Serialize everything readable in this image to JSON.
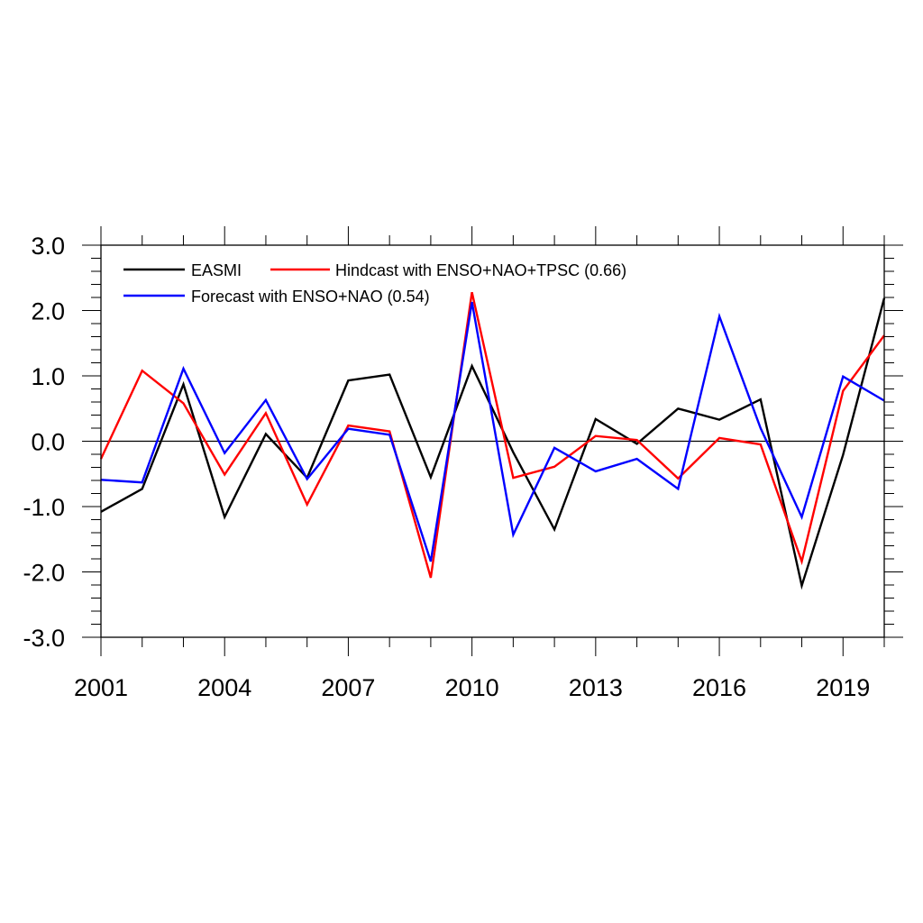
{
  "chart_data": {
    "type": "line",
    "title": "",
    "xlabel": "",
    "ylabel": "",
    "x": [
      2001,
      2002,
      2003,
      2004,
      2005,
      2006,
      2007,
      2008,
      2009,
      2010,
      2011,
      2012,
      2013,
      2014,
      2015,
      2016,
      2017,
      2018,
      2019,
      2020
    ],
    "xlim": [
      2001,
      2020
    ],
    "ylim": [
      -3.0,
      3.0
    ],
    "xticks": [
      2001,
      2004,
      2007,
      2010,
      2013,
      2016,
      2019
    ],
    "xtick_labels": [
      "2001",
      "2004",
      "2007",
      "2010",
      "2013",
      "2016",
      "2019"
    ],
    "yticks": [
      -3.0,
      -2.0,
      -1.0,
      0.0,
      1.0,
      2.0,
      3.0
    ],
    "ytick_labels": [
      "-3.0",
      "-2.0",
      "-1.0",
      "0.0",
      "1.0",
      "2.0",
      "3.0"
    ],
    "zero_line": true,
    "grid": false,
    "legend_position": "top-left",
    "series": [
      {
        "name": "EASMI",
        "color": "#000000",
        "values": [
          -1.08,
          -0.73,
          0.87,
          -1.16,
          0.11,
          -0.56,
          0.93,
          1.02,
          -0.55,
          1.15,
          -0.17,
          -1.35,
          0.34,
          -0.04,
          0.5,
          0.33,
          0.64,
          -2.21,
          -0.21,
          2.19
        ]
      },
      {
        "name": "Hindcast with ENSO+NAO+TPSC (0.66)",
        "color": "#ff0000",
        "values": [
          -0.27,
          1.08,
          0.58,
          -0.51,
          0.43,
          -0.97,
          0.24,
          0.15,
          -2.09,
          2.28,
          -0.56,
          -0.39,
          0.08,
          0.02,
          -0.57,
          0.05,
          -0.05,
          -1.84,
          0.77,
          1.62
        ]
      },
      {
        "name": "Forecast with ENSO+NAO (0.54)",
        "color": "#0000ff",
        "values": [
          -0.59,
          -0.63,
          1.11,
          -0.18,
          0.63,
          -0.58,
          0.19,
          0.1,
          -1.84,
          2.13,
          -1.43,
          -0.1,
          -0.46,
          -0.27,
          -0.73,
          1.91,
          0.2,
          -1.16,
          0.99,
          0.62
        ]
      }
    ]
  }
}
